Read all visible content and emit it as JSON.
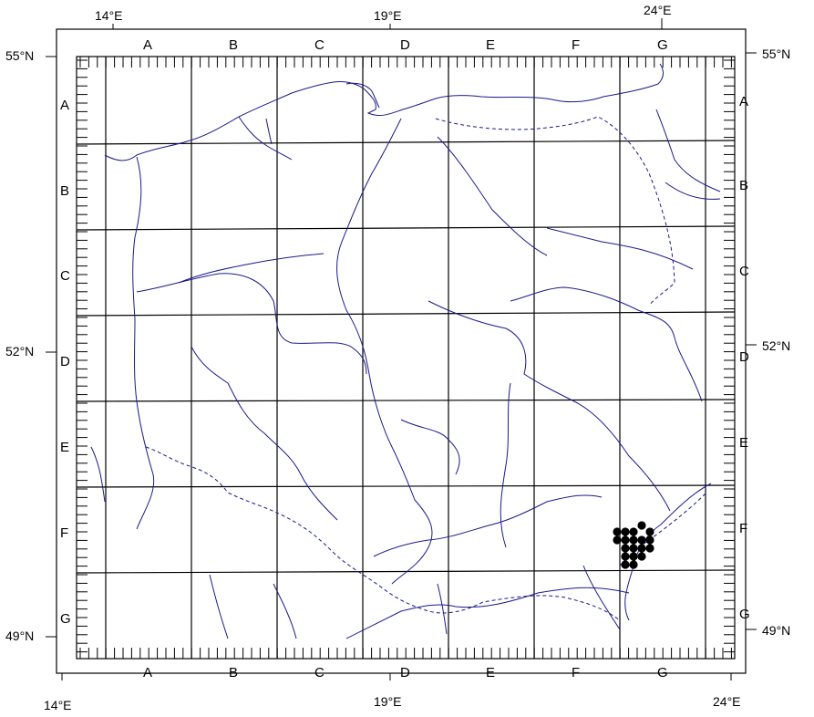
{
  "columns": [
    "A",
    "B",
    "C",
    "D",
    "E",
    "F",
    "G"
  ],
  "rows": [
    "A",
    "B",
    "C",
    "D",
    "E",
    "F",
    "G"
  ],
  "longitude_labels": {
    "top": [
      "14°E",
      "19°E",
      "24°E"
    ],
    "bottom": [
      "14°E",
      "19°E",
      "24°E"
    ]
  },
  "latitude_labels": {
    "left": [
      "55°N",
      "52°N",
      "49°N"
    ],
    "right": [
      "55°N",
      "52°N",
      "49°N"
    ]
  },
  "colors": {
    "rivers": "#1a1a8c",
    "grid": "#000000",
    "occurrence_dots": "#000000"
  },
  "occurrence_count": 19
}
